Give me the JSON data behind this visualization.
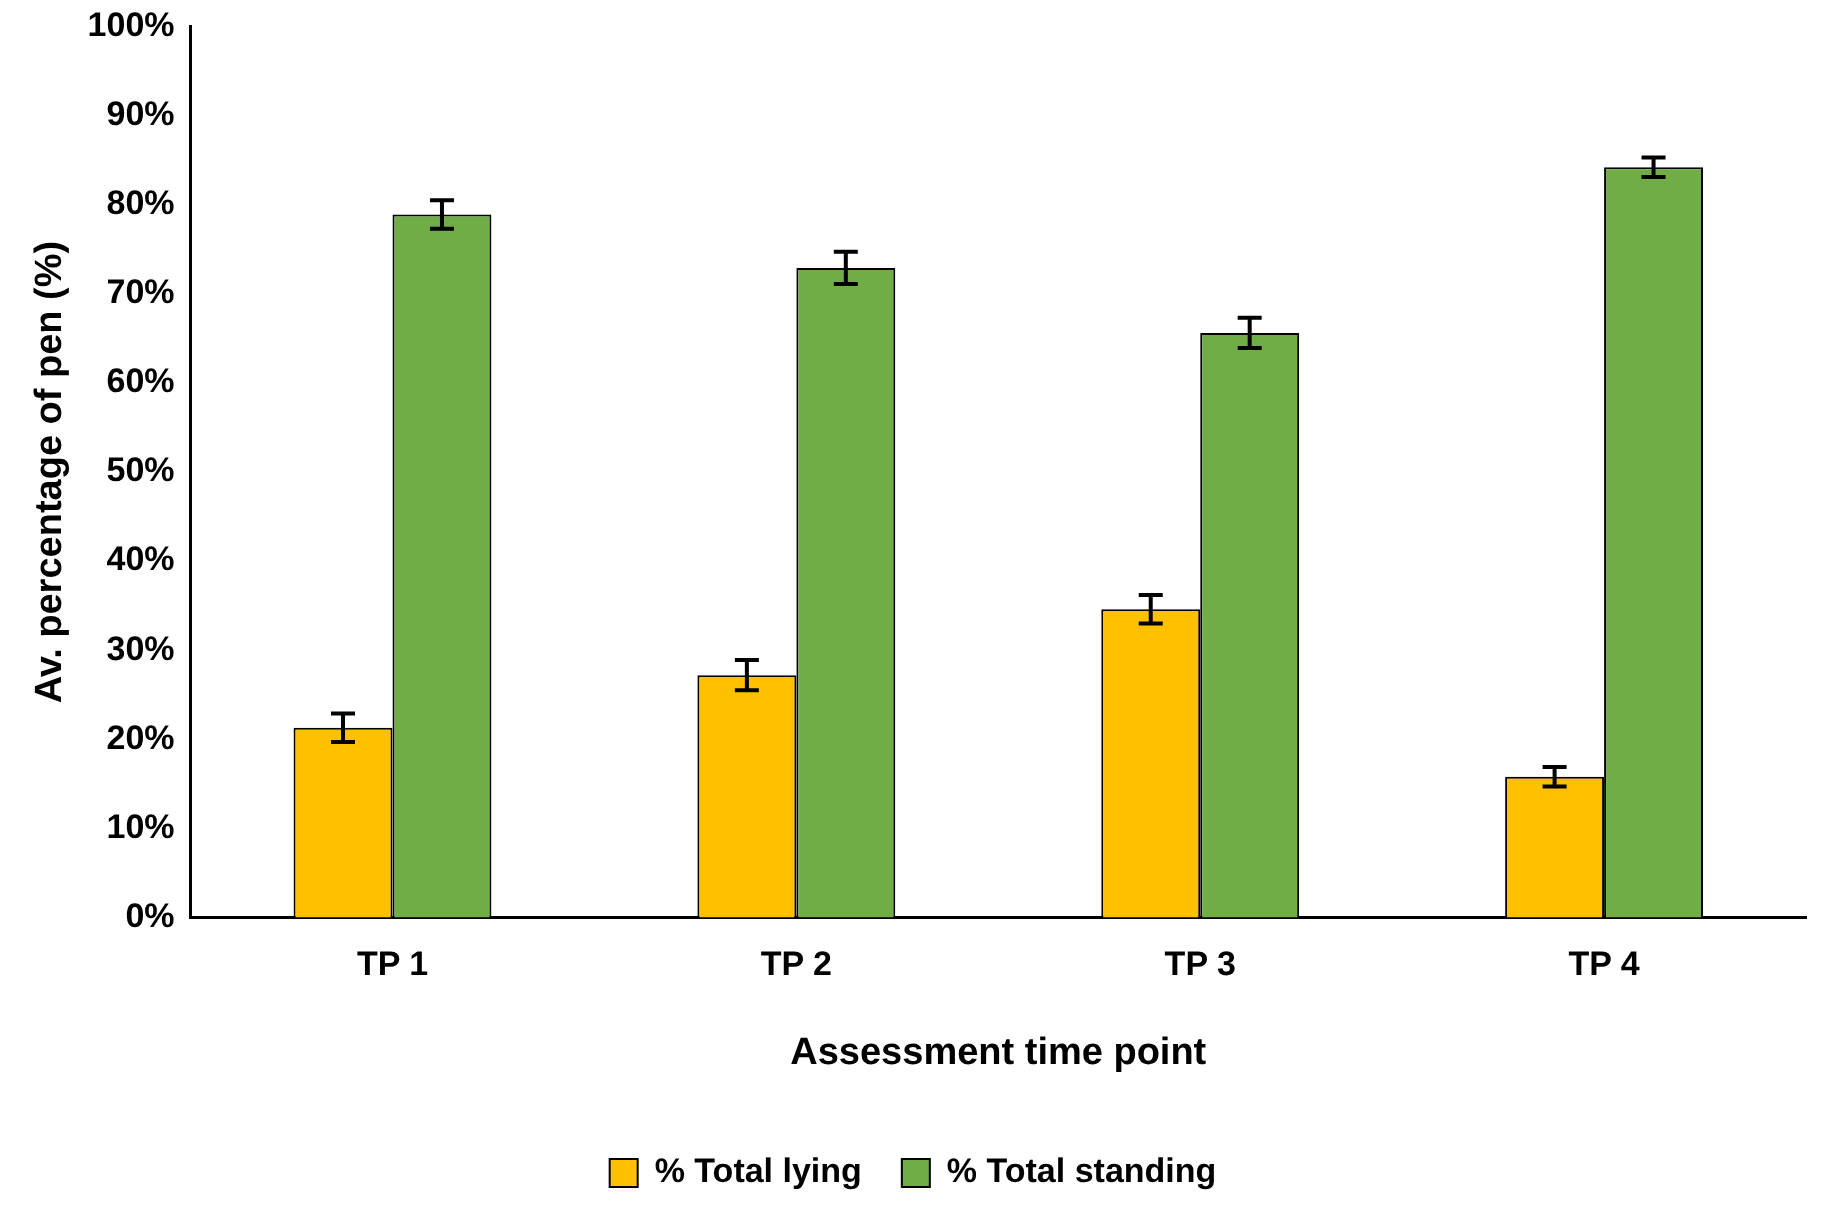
{
  "chart_data": {
    "type": "bar",
    "xlabel": "Assessment time point",
    "ylabel": "Av. percentage of pen (%)",
    "categories": [
      "TP 1",
      "TP 2",
      "TP 3",
      "TP 4"
    ],
    "series": [
      {
        "name": "% Total lying",
        "color": "#ffc000",
        "values": [
          21.3,
          27.2,
          34.6,
          15.8
        ],
        "errors": [
          1.6,
          1.7,
          1.6,
          1.1
        ]
      },
      {
        "name": "% Total standing",
        "color": "#70ad47",
        "values": [
          78.9,
          72.9,
          65.6,
          84.2
        ],
        "errors": [
          1.6,
          1.8,
          1.7,
          1.1
        ]
      }
    ],
    "ylim": [
      0,
      100
    ],
    "yticks": [
      {
        "value": 0,
        "label": "0%"
      },
      {
        "value": 10,
        "label": "10%"
      },
      {
        "value": 20,
        "label": "20%"
      },
      {
        "value": 30,
        "label": "30%"
      },
      {
        "value": 40,
        "label": "40%"
      },
      {
        "value": 50,
        "label": "50%"
      },
      {
        "value": 60,
        "label": "60%"
      },
      {
        "value": 70,
        "label": "70%"
      },
      {
        "value": 80,
        "label": "80%"
      },
      {
        "value": 90,
        "label": "90%"
      },
      {
        "value": 100,
        "label": "100%"
      }
    ],
    "grid": false,
    "legend": "bottom"
  }
}
